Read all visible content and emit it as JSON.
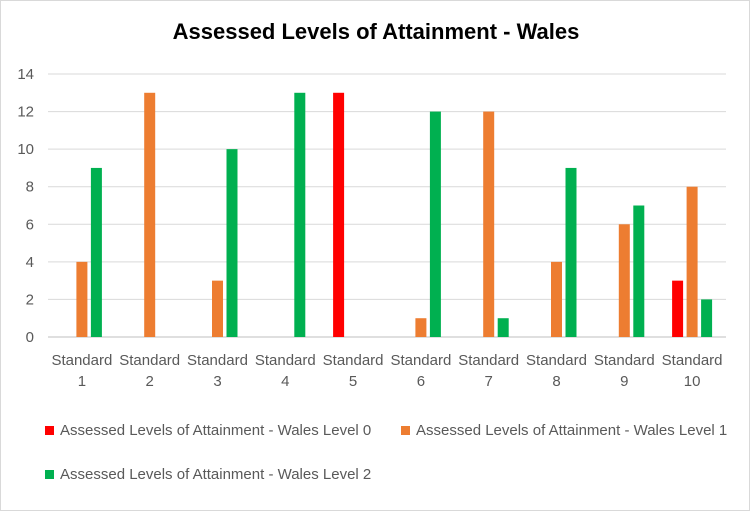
{
  "chart_data": {
    "type": "bar",
    "title": "Assessed Levels of Attainment - Wales",
    "categories": [
      [
        "Standard",
        "1"
      ],
      [
        "Standard",
        "2"
      ],
      [
        "Standard",
        "3"
      ],
      [
        "Standard",
        "4"
      ],
      [
        "Standard",
        "5"
      ],
      [
        "Standard",
        "6"
      ],
      [
        "Standard",
        "7"
      ],
      [
        "Standard",
        "8"
      ],
      [
        "Standard",
        "9"
      ],
      [
        "Standard",
        "10"
      ]
    ],
    "series": [
      {
        "name": "Assessed Levels of Attainment - Wales Level 0",
        "color": "#ff0000",
        "values": [
          0,
          0,
          0,
          0,
          13,
          0,
          0,
          0,
          0,
          3
        ]
      },
      {
        "name": "Assessed Levels of Attainment - Wales Level 1",
        "color": "#ed7d31",
        "values": [
          4,
          13,
          3,
          0,
          0,
          1,
          12,
          4,
          6,
          8
        ]
      },
      {
        "name": "Assessed Levels of Attainment - Wales Level 2",
        "color": "#00b050",
        "values": [
          9,
          0,
          10,
          13,
          0,
          12,
          1,
          9,
          7,
          2
        ]
      }
    ],
    "ylim": [
      0,
      14
    ],
    "yticks": [
      0,
      2,
      4,
      6,
      8,
      10,
      12,
      14
    ],
    "grid": true,
    "legend_position": "bottom"
  }
}
